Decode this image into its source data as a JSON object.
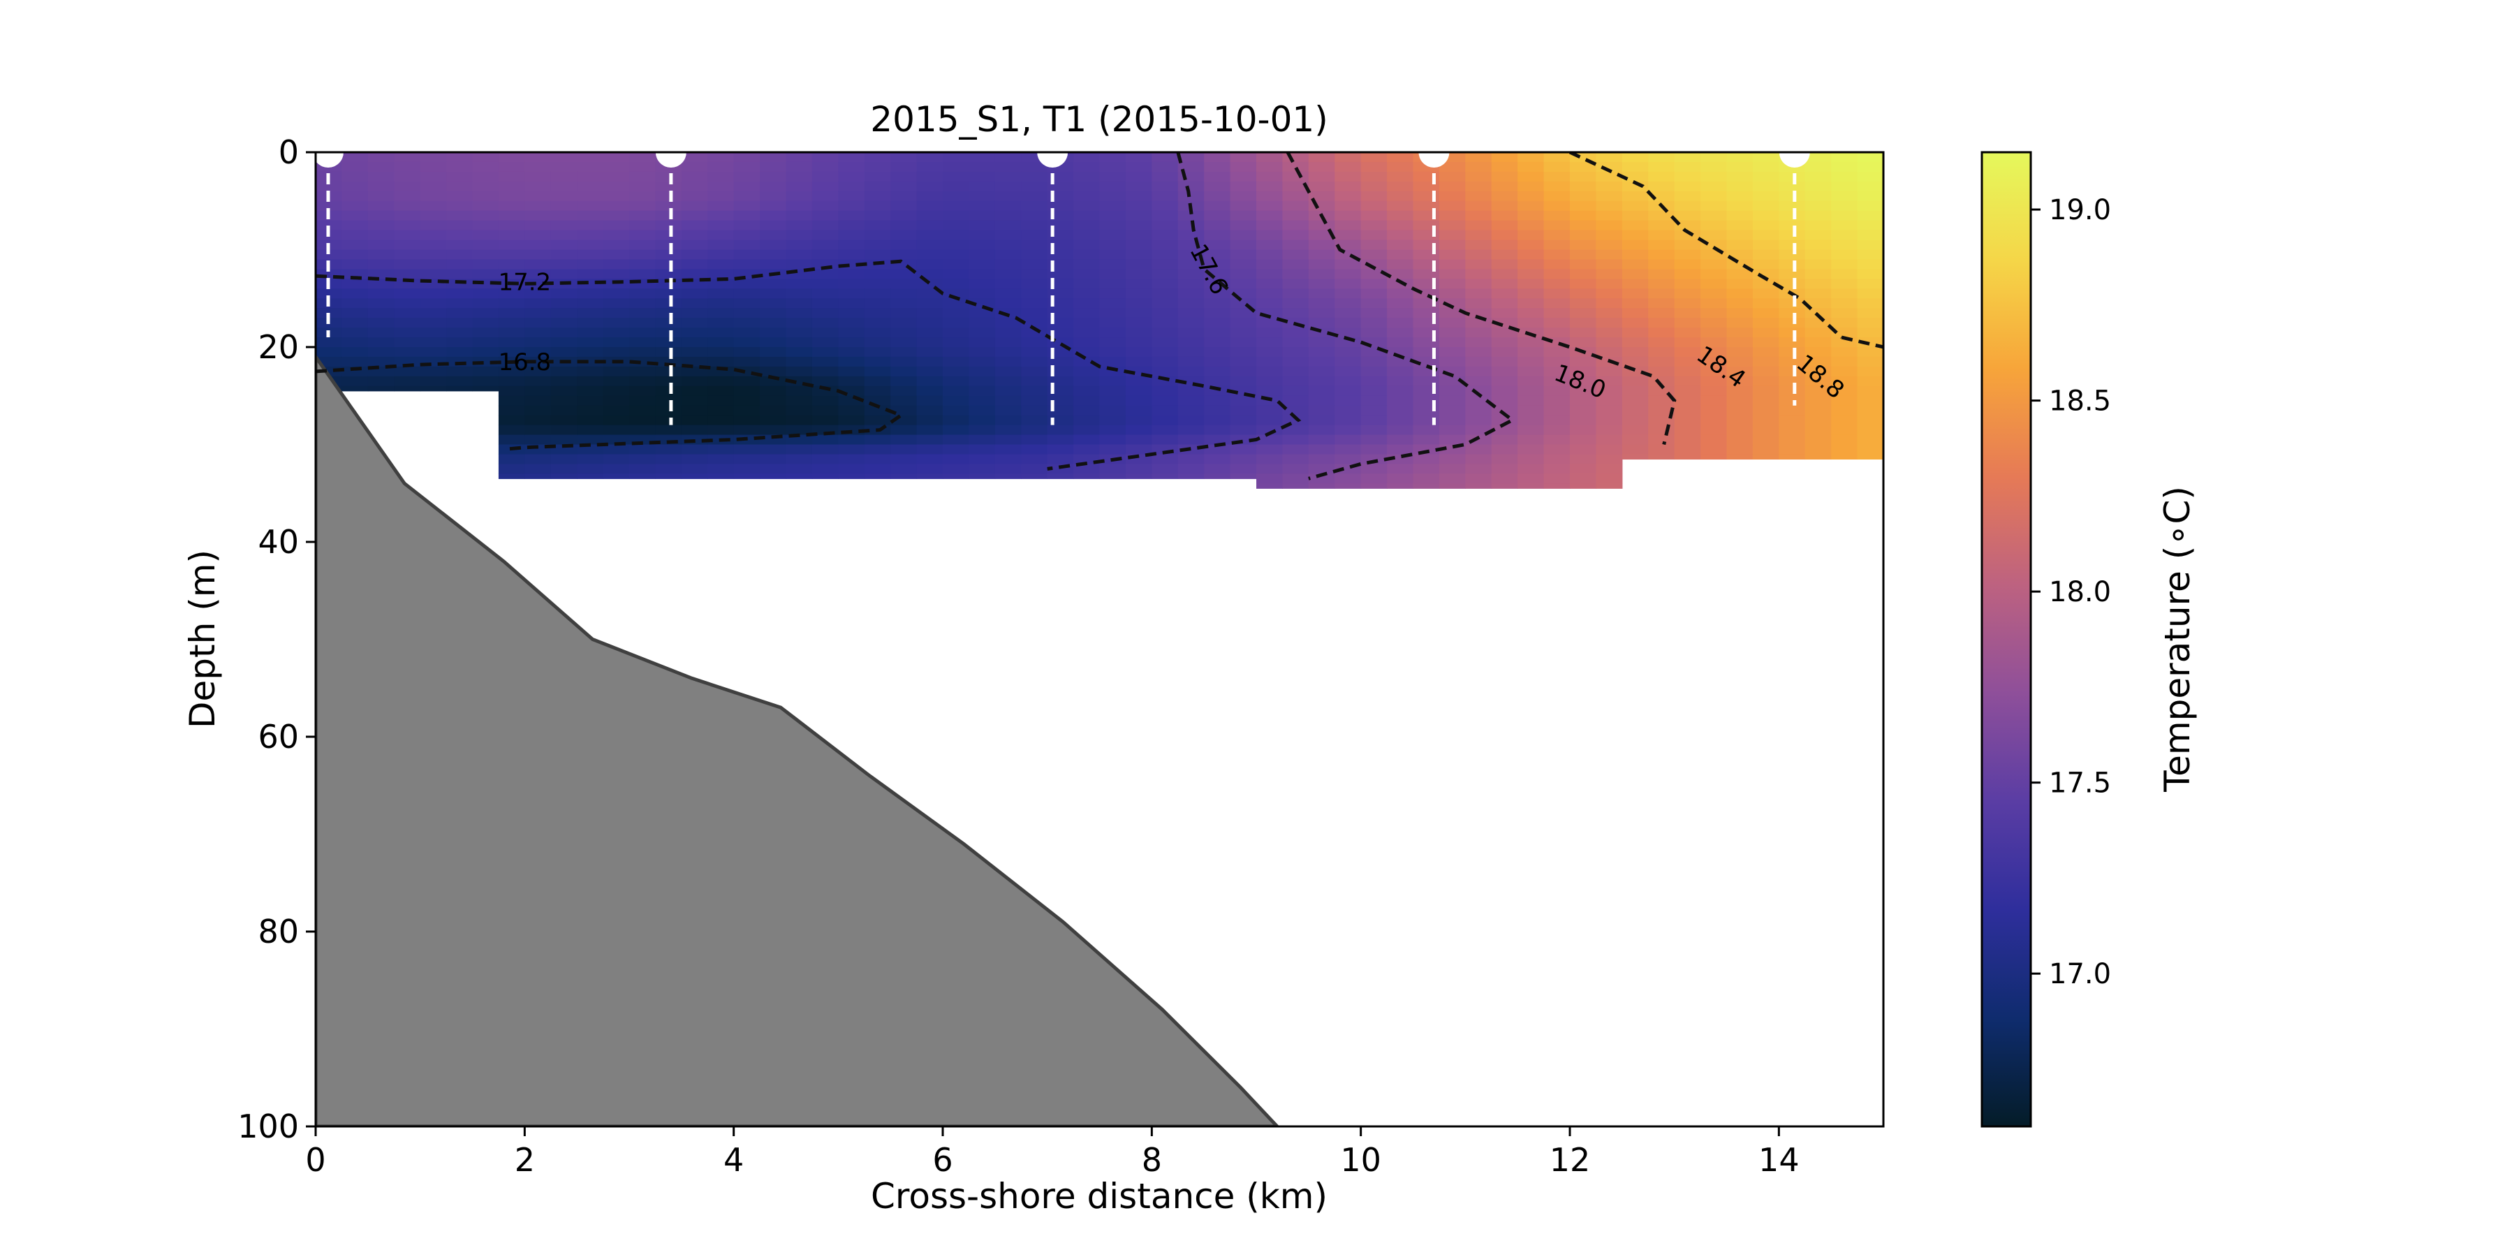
{
  "chart_data": {
    "type": "heatmap",
    "title": "2015_S1, T1 (2015-10-01)",
    "xlabel": "Cross-shore distance (km)",
    "ylabel": "Depth (m)",
    "xlim": [
      0,
      15
    ],
    "ylim": [
      100,
      0
    ],
    "xticks": [
      0,
      2,
      4,
      6,
      8,
      10,
      12,
      14
    ],
    "yticks": [
      0,
      20,
      40,
      60,
      80,
      100
    ],
    "grid": false,
    "colorbar": {
      "label": "Temperature (∘C)",
      "range": [
        16.6,
        19.15
      ],
      "ticks": [
        "17.0",
        "17.5",
        "18.0",
        "18.5",
        "19.0"
      ],
      "tick_values": [
        17.0,
        17.5,
        18.0,
        18.5,
        19.0
      ],
      "colormap": [
        "#041c28",
        "#0f2c6e",
        "#2e2e9c",
        "#5a3da4",
        "#8e4f9a",
        "#bd6280",
        "#e67a56",
        "#f7a53a",
        "#f5d648",
        "#e5f85c"
      ]
    },
    "stations": [
      {
        "x": 0.12,
        "max_depth": 19
      },
      {
        "x": 3.4,
        "max_depth": 28
      },
      {
        "x": 7.05,
        "max_depth": 28
      },
      {
        "x": 10.7,
        "max_depth": 28
      },
      {
        "x": 14.15,
        "max_depth": 26
      }
    ],
    "temperature_field": {
      "x_nodes": [
        0,
        1,
        2,
        3,
        4,
        5,
        6,
        7,
        8,
        9,
        10,
        11,
        12,
        13,
        14,
        15
      ],
      "depth_nodes": [
        0,
        5,
        10,
        15,
        20,
        24,
        28,
        31,
        34
      ],
      "values": [
        [
          17.55,
          17.62,
          17.66,
          17.66,
          17.6,
          17.48,
          17.38,
          17.38,
          17.48,
          17.85,
          18.2,
          18.45,
          18.78,
          18.95,
          19.05,
          19.15
        ],
        [
          17.5,
          17.58,
          17.62,
          17.62,
          17.55,
          17.42,
          17.3,
          17.32,
          17.42,
          17.72,
          18.05,
          18.33,
          18.62,
          18.8,
          18.95,
          19.08
        ],
        [
          17.35,
          17.4,
          17.42,
          17.4,
          17.32,
          17.25,
          17.2,
          17.25,
          17.35,
          17.55,
          17.82,
          18.12,
          18.42,
          18.62,
          18.8,
          18.95
        ],
        [
          17.1,
          17.15,
          17.12,
          17.08,
          17.05,
          17.1,
          17.12,
          17.2,
          17.3,
          17.45,
          17.62,
          17.92,
          18.2,
          18.45,
          18.65,
          18.82
        ],
        [
          16.9,
          16.95,
          16.9,
          16.85,
          16.85,
          16.95,
          17.05,
          17.15,
          17.25,
          17.38,
          17.52,
          17.78,
          18.02,
          18.28,
          18.52,
          18.72
        ],
        [
          16.75,
          16.72,
          16.7,
          16.65,
          16.62,
          16.72,
          16.9,
          17.05,
          17.18,
          17.32,
          17.45,
          17.68,
          17.95,
          18.2,
          18.45,
          18.65
        ],
        [
          16.75,
          16.72,
          16.65,
          16.62,
          16.62,
          16.65,
          16.82,
          17.0,
          17.15,
          17.3,
          17.45,
          17.68,
          17.95,
          18.2,
          18.45,
          18.65
        ],
        [
          16.75,
          16.9,
          16.95,
          17.0,
          17.05,
          17.1,
          17.15,
          17.2,
          17.35,
          17.5,
          17.62,
          17.8,
          18.02,
          18.2,
          18.45,
          18.65
        ],
        [
          16.9,
          17.05,
          17.1,
          17.15,
          17.18,
          17.2,
          17.25,
          17.3,
          17.42,
          17.58,
          17.72,
          17.88,
          18.05,
          18.2,
          18.45,
          18.65
        ]
      ],
      "data_bottom": [
        {
          "x0": 0,
          "x1": 1.82,
          "depth": 24.5
        },
        {
          "x0": 1.82,
          "x1": 8.95,
          "depth": 33.5
        },
        {
          "x0": 8.95,
          "x1": 12.42,
          "depth": 34.5
        },
        {
          "x0": 12.42,
          "x1": 15,
          "depth": 31.5
        }
      ]
    },
    "contours": [
      {
        "level": "16.8",
        "points": [
          [
            0,
            22.5
          ],
          [
            1,
            21.8
          ],
          [
            2,
            21.5
          ],
          [
            3,
            21.5
          ],
          [
            4,
            22.3
          ],
          [
            5,
            24.5
          ],
          [
            5.6,
            27
          ],
          [
            5.4,
            28.5
          ],
          [
            4,
            29.5
          ],
          [
            2,
            30.3
          ],
          [
            1.8,
            30.5
          ]
        ]
      },
      {
        "level": "17.2",
        "points": [
          [
            0,
            12.7
          ],
          [
            1,
            13.2
          ],
          [
            2,
            13.5
          ],
          [
            3,
            13.3
          ],
          [
            4,
            13
          ],
          [
            5,
            11.7
          ],
          [
            5.6,
            11.2
          ],
          [
            6,
            14.5
          ],
          [
            6.7,
            17
          ],
          [
            7.5,
            22
          ],
          [
            8.5,
            24
          ],
          [
            9.2,
            25.5
          ],
          [
            9.4,
            27.5
          ],
          [
            9,
            29.5
          ],
          [
            8,
            31
          ],
          [
            7,
            32.5
          ]
        ]
      },
      {
        "level": "17.6",
        "points": [
          [
            8.25,
            0
          ],
          [
            8.35,
            4
          ],
          [
            8.4,
            8
          ],
          [
            8.5,
            12
          ],
          [
            9,
            16.5
          ],
          [
            10,
            19.5
          ],
          [
            10.9,
            23
          ],
          [
            11.45,
            27.5
          ],
          [
            11,
            30
          ],
          [
            10,
            32
          ],
          [
            9.5,
            33.5
          ]
        ]
      },
      {
        "level": "18.0",
        "points": [
          [
            9.3,
            0
          ],
          [
            9.55,
            5
          ],
          [
            9.8,
            10
          ],
          [
            10.5,
            14
          ],
          [
            11,
            16.5
          ],
          [
            12,
            20
          ],
          [
            12.8,
            23
          ],
          [
            13,
            25.5
          ],
          [
            12.9,
            30
          ]
        ]
      },
      {
        "level": "18.4",
        "points": [
          [
            12,
            0
          ],
          [
            12.7,
            3.5
          ],
          [
            13.1,
            8
          ],
          [
            13.8,
            12.5
          ],
          [
            14.2,
            15
          ],
          [
            14.6,
            19
          ]
        ]
      },
      {
        "level": "18.8",
        "points": [
          [
            14.6,
            19
          ],
          [
            15,
            20
          ]
        ]
      }
    ],
    "bathymetry": [
      [
        0,
        21
      ],
      [
        0.85,
        34
      ],
      [
        1.8,
        42
      ],
      [
        2.65,
        50
      ],
      [
        3.6,
        54
      ],
      [
        4.45,
        57
      ],
      [
        5.3,
        64
      ],
      [
        6.2,
        71
      ],
      [
        7.15,
        79
      ],
      [
        8.1,
        88
      ],
      [
        8.85,
        96
      ],
      [
        9.2,
        100
      ]
    ]
  }
}
